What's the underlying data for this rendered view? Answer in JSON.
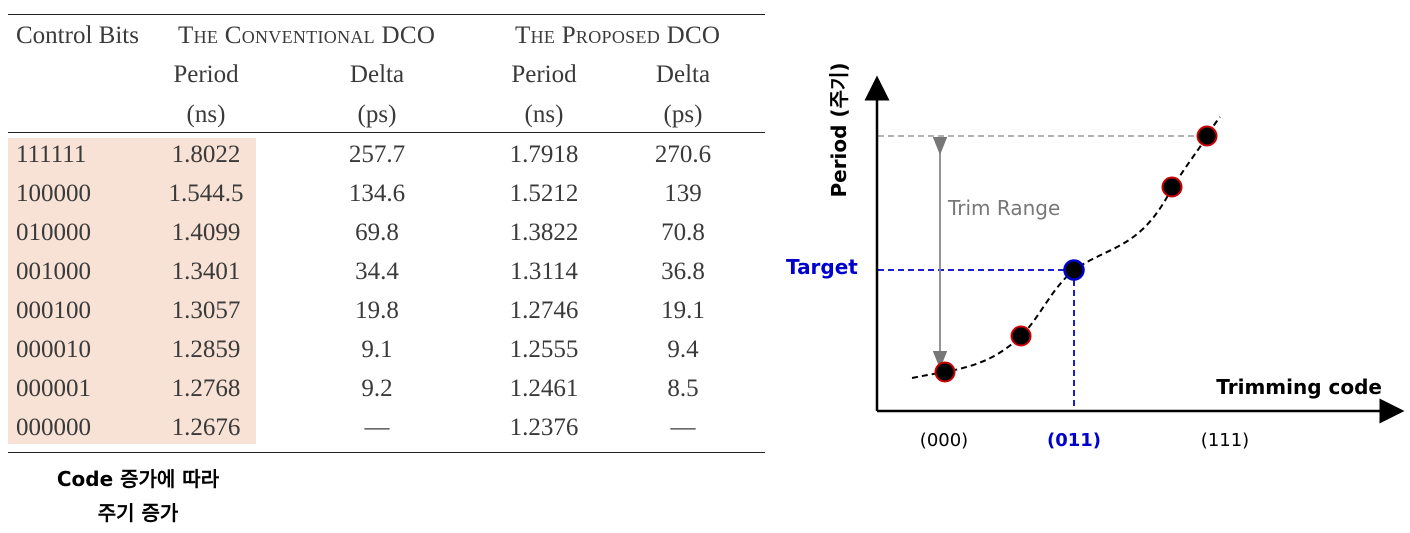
{
  "table": {
    "headers": {
      "control_bits": "Control Bits",
      "conventional": "The Conventional DCO",
      "proposed": "The Proposed DCO",
      "period": "Period",
      "period_unit": "(ns)",
      "delta": "Delta",
      "delta_unit": "(ps)"
    },
    "rows": [
      {
        "bits": "111111",
        "conv_period": "1.8022",
        "conv_delta": "257.7",
        "prop_period": "1.7918",
        "prop_delta": "270.6"
      },
      {
        "bits": "100000",
        "conv_period": "1.544.5",
        "conv_delta": "134.6",
        "prop_period": "1.5212",
        "prop_delta": "139"
      },
      {
        "bits": "010000",
        "conv_period": "1.4099",
        "conv_delta": "69.8",
        "prop_period": "1.3822",
        "prop_delta": "70.8"
      },
      {
        "bits": "001000",
        "conv_period": "1.3401",
        "conv_delta": "34.4",
        "prop_period": "1.3114",
        "prop_delta": "36.8"
      },
      {
        "bits": "000100",
        "conv_period": "1.3057",
        "conv_delta": "19.8",
        "prop_period": "1.2746",
        "prop_delta": "19.1"
      },
      {
        "bits": "000010",
        "conv_period": "1.2859",
        "conv_delta": "9.1",
        "prop_period": "1.2555",
        "prop_delta": "9.4"
      },
      {
        "bits": "000001",
        "conv_period": "1.2768",
        "conv_delta": "9.2",
        "prop_period": "1.2461",
        "prop_delta": "8.5"
      },
      {
        "bits": "000000",
        "conv_period": "1.2676",
        "conv_delta": "—",
        "prop_period": "1.2376",
        "prop_delta": "—"
      }
    ],
    "highlight_color": "#f8e2d6"
  },
  "note": {
    "line1": "Code 증가에 따라",
    "line2": "주기 증가"
  },
  "diagram": {
    "y_axis_label": "Period (주기)",
    "x_axis_label": "Trimming code",
    "trim_range_label": "Trim Range",
    "target_label": "Target",
    "x_ticks": [
      "(000)",
      "(011)",
      "(111)"
    ],
    "target_color": "#0000cc",
    "point_fill": "#000000",
    "point_outline": "#cc0000",
    "target_point_outline": "#0000cc"
  }
}
